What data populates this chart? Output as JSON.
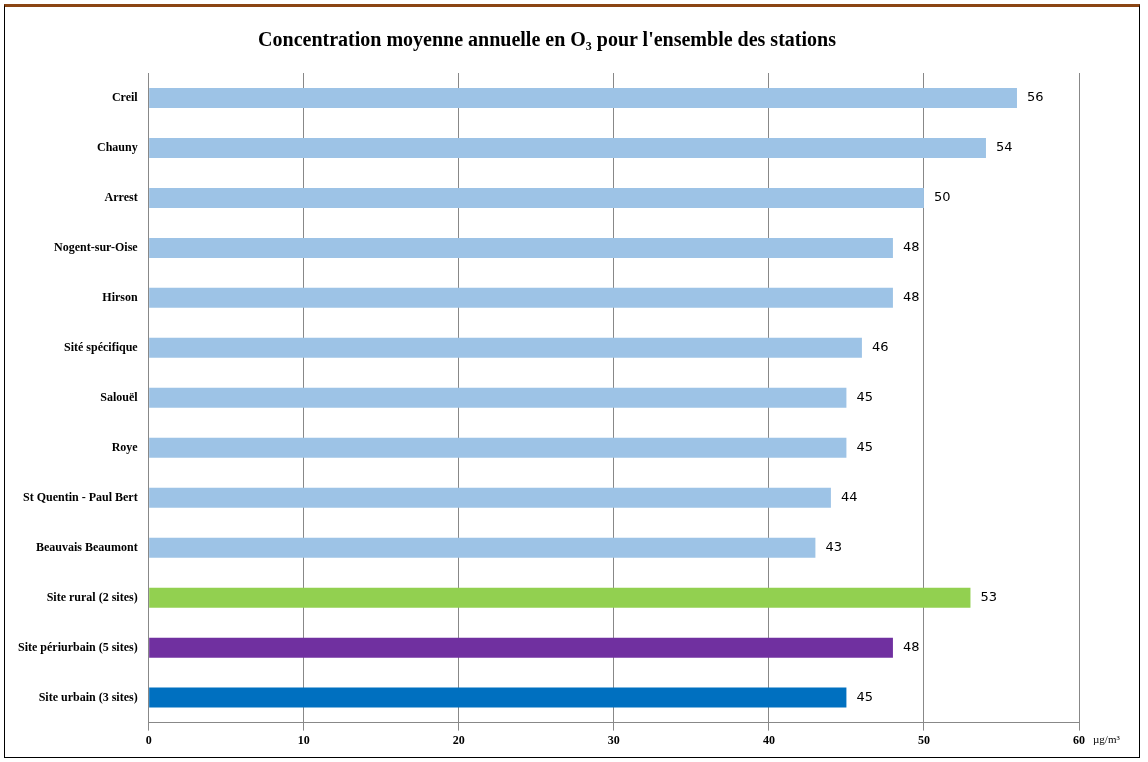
{
  "chart_data": {
    "type": "bar",
    "orientation": "horizontal",
    "title": "Concentration moyenne annuelle en O₃ pour l'ensemble des stations",
    "xlabel": "µg/m³",
    "categories": [
      "Creil",
      "Chauny",
      "Arrest",
      "Nogent-sur-Oise",
      "Hirson",
      "Sité spécifique",
      "Salouël",
      "Roye",
      "St Quentin - Paul Bert",
      "Beauvais Beaumont",
      "Site rural (2 sites)",
      "Site périurbain (5 sites)",
      "Site urbain (3 sites)"
    ],
    "values": [
      56,
      54,
      50,
      48,
      48,
      46,
      45,
      45,
      44,
      43,
      53,
      48,
      45
    ],
    "colors": [
      "#9dc3e6",
      "#9dc3e6",
      "#9dc3e6",
      "#9dc3e6",
      "#9dc3e6",
      "#9dc3e6",
      "#9dc3e6",
      "#9dc3e6",
      "#9dc3e6",
      "#9dc3e6",
      "#92d050",
      "#7030a0",
      "#0070c0"
    ],
    "xlim": [
      0,
      60
    ],
    "xticks": [
      0,
      10,
      20,
      30,
      40,
      50,
      60
    ],
    "grid": "x",
    "data_labels": true,
    "legend": false
  }
}
